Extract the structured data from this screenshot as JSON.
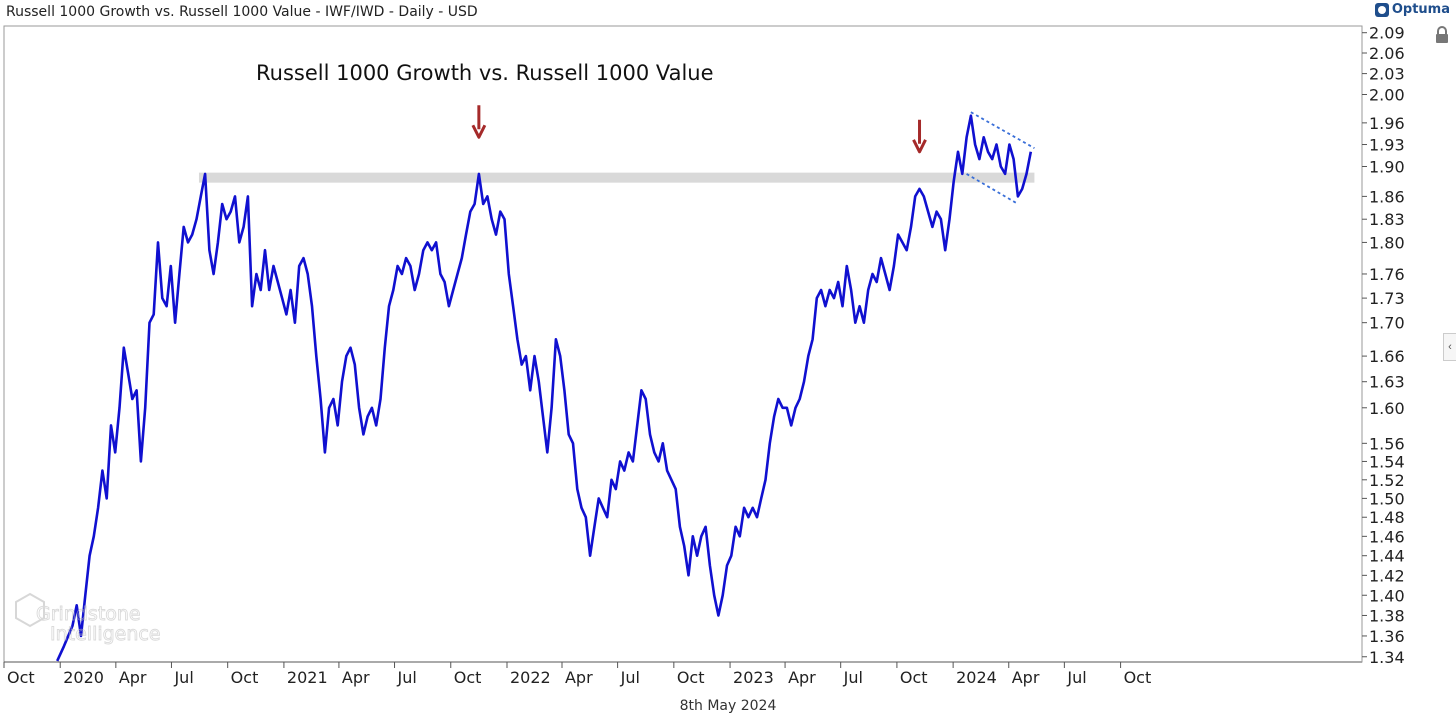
{
  "header": {
    "title": "Russell 1000 Growth vs. Russell 1000 Value - IWF/IWD - Daily - USD"
  },
  "brand": {
    "name": "Optuma"
  },
  "icons": {
    "lock": "lock-icon",
    "collapse": "chevron-left-icon"
  },
  "footer": {
    "date": "8th May 2024"
  },
  "watermark": {
    "line1": "Grindstone",
    "line2": "Intelligence"
  },
  "colors": {
    "series": "#1010d0",
    "resistance": "#d9d9d9",
    "arrow": "#a52a2a",
    "channel": "#3a6fd8"
  },
  "chart_data": {
    "type": "line",
    "title": "Russell 1000 Growth vs. Russell 1000 Value",
    "xlabel": "",
    "ylabel": "",
    "y_scale": "log",
    "ylim": [
      1.335,
      2.1
    ],
    "xlim": [
      "2019-10-01",
      "2025-10-31"
    ],
    "x_ticks": [
      {
        "date": "2019-10-01",
        "label": "Oct"
      },
      {
        "date": "2020-01-01",
        "label": "2020"
      },
      {
        "date": "2020-04-01",
        "label": "Apr"
      },
      {
        "date": "2020-07-01",
        "label": "Jul"
      },
      {
        "date": "2020-10-01",
        "label": "Oct"
      },
      {
        "date": "2021-01-01",
        "label": "2021"
      },
      {
        "date": "2021-04-01",
        "label": "Apr"
      },
      {
        "date": "2021-07-01",
        "label": "Jul"
      },
      {
        "date": "2021-10-01",
        "label": "Oct"
      },
      {
        "date": "2022-01-01",
        "label": "2022"
      },
      {
        "date": "2022-04-01",
        "label": "Apr"
      },
      {
        "date": "2022-07-01",
        "label": "Jul"
      },
      {
        "date": "2022-10-01",
        "label": "Oct"
      },
      {
        "date": "2023-01-01",
        "label": "2023"
      },
      {
        "date": "2023-04-01",
        "label": "Apr"
      },
      {
        "date": "2023-07-01",
        "label": "Jul"
      },
      {
        "date": "2023-10-01",
        "label": "Oct"
      },
      {
        "date": "2024-01-01",
        "label": "2024"
      },
      {
        "date": "2024-04-01",
        "label": "Apr"
      },
      {
        "date": "2024-07-01",
        "label": "Jul"
      },
      {
        "date": "2024-10-01",
        "label": "Oct"
      }
    ],
    "y_ticks": [
      1.34,
      1.36,
      1.38,
      1.4,
      1.42,
      1.44,
      1.46,
      1.48,
      1.5,
      1.52,
      1.54,
      1.56,
      1.6,
      1.63,
      1.66,
      1.7,
      1.73,
      1.76,
      1.8,
      1.83,
      1.86,
      1.9,
      1.93,
      1.96,
      2.0,
      2.03,
      2.06,
      2.09
    ],
    "y_tick_labels": [
      "1.34",
      "1.36",
      "1.38",
      "1.40",
      "1.42",
      "1.44",
      "1.46",
      "1.48",
      "1.50",
      "1.52",
      "1.54",
      "1.56",
      "1.60",
      "1.63",
      "1.66",
      "1.70",
      "1.73",
      "1.76",
      "1.80",
      "1.83",
      "1.86",
      "1.90",
      "1.93",
      "1.96",
      "2.00",
      "2.03",
      "2.06",
      "2.09"
    ],
    "series": [
      {
        "values": [
          [
            "2019-12-27",
            1.336
          ],
          [
            "2020-01-07",
            1.35
          ],
          [
            "2020-01-14",
            1.36
          ],
          [
            "2020-01-21",
            1.37
          ],
          [
            "2020-01-28",
            1.39
          ],
          [
            "2020-02-04",
            1.36
          ],
          [
            "2020-02-11",
            1.4
          ],
          [
            "2020-02-18",
            1.44
          ],
          [
            "2020-02-25",
            1.46
          ],
          [
            "2020-03-03",
            1.49
          ],
          [
            "2020-03-10",
            1.53
          ],
          [
            "2020-03-17",
            1.5
          ],
          [
            "2020-03-24",
            1.58
          ],
          [
            "2020-03-31",
            1.55
          ],
          [
            "2020-04-07",
            1.6
          ],
          [
            "2020-04-14",
            1.67
          ],
          [
            "2020-04-21",
            1.64
          ],
          [
            "2020-04-28",
            1.61
          ],
          [
            "2020-05-05",
            1.62
          ],
          [
            "2020-05-12",
            1.54
          ],
          [
            "2020-05-19",
            1.6
          ],
          [
            "2020-05-26",
            1.7
          ],
          [
            "2020-06-02",
            1.71
          ],
          [
            "2020-06-09",
            1.8
          ],
          [
            "2020-06-16",
            1.73
          ],
          [
            "2020-06-23",
            1.72
          ],
          [
            "2020-06-30",
            1.77
          ],
          [
            "2020-07-07",
            1.7
          ],
          [
            "2020-07-14",
            1.76
          ],
          [
            "2020-07-21",
            1.82
          ],
          [
            "2020-07-28",
            1.8
          ],
          [
            "2020-08-04",
            1.81
          ],
          [
            "2020-08-11",
            1.83
          ],
          [
            "2020-08-18",
            1.86
          ],
          [
            "2020-08-25",
            1.89
          ],
          [
            "2020-09-01",
            1.79
          ],
          [
            "2020-09-08",
            1.76
          ],
          [
            "2020-09-15",
            1.8
          ],
          [
            "2020-09-22",
            1.85
          ],
          [
            "2020-09-29",
            1.83
          ],
          [
            "2020-10-06",
            1.84
          ],
          [
            "2020-10-13",
            1.86
          ],
          [
            "2020-10-20",
            1.8
          ],
          [
            "2020-10-27",
            1.82
          ],
          [
            "2020-11-03",
            1.86
          ],
          [
            "2020-11-10",
            1.72
          ],
          [
            "2020-11-17",
            1.76
          ],
          [
            "2020-11-24",
            1.74
          ],
          [
            "2020-12-01",
            1.79
          ],
          [
            "2020-12-08",
            1.74
          ],
          [
            "2020-12-15",
            1.77
          ],
          [
            "2020-12-22",
            1.75
          ],
          [
            "2020-12-29",
            1.73
          ],
          [
            "2021-01-05",
            1.71
          ],
          [
            "2021-01-12",
            1.74
          ],
          [
            "2021-01-19",
            1.7
          ],
          [
            "2021-01-26",
            1.77
          ],
          [
            "2021-02-02",
            1.78
          ],
          [
            "2021-02-09",
            1.76
          ],
          [
            "2021-02-16",
            1.72
          ],
          [
            "2021-02-23",
            1.66
          ],
          [
            "2021-03-02",
            1.61
          ],
          [
            "2021-03-09",
            1.55
          ],
          [
            "2021-03-16",
            1.6
          ],
          [
            "2021-03-23",
            1.61
          ],
          [
            "2021-03-30",
            1.58
          ],
          [
            "2021-04-06",
            1.63
          ],
          [
            "2021-04-13",
            1.66
          ],
          [
            "2021-04-20",
            1.67
          ],
          [
            "2021-04-27",
            1.65
          ],
          [
            "2021-05-04",
            1.6
          ],
          [
            "2021-05-11",
            1.57
          ],
          [
            "2021-05-18",
            1.59
          ],
          [
            "2021-05-25",
            1.6
          ],
          [
            "2021-06-01",
            1.58
          ],
          [
            "2021-06-08",
            1.61
          ],
          [
            "2021-06-15",
            1.67
          ],
          [
            "2021-06-22",
            1.72
          ],
          [
            "2021-06-29",
            1.74
          ],
          [
            "2021-07-06",
            1.77
          ],
          [
            "2021-07-13",
            1.76
          ],
          [
            "2021-07-20",
            1.78
          ],
          [
            "2021-07-27",
            1.77
          ],
          [
            "2021-08-03",
            1.74
          ],
          [
            "2021-08-10",
            1.76
          ],
          [
            "2021-08-17",
            1.79
          ],
          [
            "2021-08-24",
            1.8
          ],
          [
            "2021-08-31",
            1.79
          ],
          [
            "2021-09-07",
            1.8
          ],
          [
            "2021-09-14",
            1.76
          ],
          [
            "2021-09-21",
            1.75
          ],
          [
            "2021-09-28",
            1.72
          ],
          [
            "2021-10-05",
            1.74
          ],
          [
            "2021-10-12",
            1.76
          ],
          [
            "2021-10-19",
            1.78
          ],
          [
            "2021-10-26",
            1.81
          ],
          [
            "2021-11-02",
            1.84
          ],
          [
            "2021-11-09",
            1.85
          ],
          [
            "2021-11-16",
            1.89
          ],
          [
            "2021-11-23",
            1.85
          ],
          [
            "2021-11-30",
            1.86
          ],
          [
            "2021-12-07",
            1.83
          ],
          [
            "2021-12-14",
            1.81
          ],
          [
            "2021-12-21",
            1.84
          ],
          [
            "2021-12-28",
            1.83
          ],
          [
            "2022-01-04",
            1.76
          ],
          [
            "2022-01-11",
            1.72
          ],
          [
            "2022-01-18",
            1.68
          ],
          [
            "2022-01-25",
            1.65
          ],
          [
            "2022-02-01",
            1.66
          ],
          [
            "2022-02-08",
            1.62
          ],
          [
            "2022-02-15",
            1.66
          ],
          [
            "2022-02-22",
            1.63
          ],
          [
            "2022-03-01",
            1.59
          ],
          [
            "2022-03-08",
            1.55
          ],
          [
            "2022-03-15",
            1.6
          ],
          [
            "2022-03-22",
            1.68
          ],
          [
            "2022-03-29",
            1.66
          ],
          [
            "2022-04-05",
            1.62
          ],
          [
            "2022-04-12",
            1.57
          ],
          [
            "2022-04-19",
            1.56
          ],
          [
            "2022-04-26",
            1.51
          ],
          [
            "2022-05-03",
            1.49
          ],
          [
            "2022-05-10",
            1.48
          ],
          [
            "2022-05-17",
            1.44
          ],
          [
            "2022-05-24",
            1.47
          ],
          [
            "2022-05-31",
            1.5
          ],
          [
            "2022-06-07",
            1.49
          ],
          [
            "2022-06-14",
            1.48
          ],
          [
            "2022-06-21",
            1.52
          ],
          [
            "2022-06-28",
            1.51
          ],
          [
            "2022-07-05",
            1.54
          ],
          [
            "2022-07-12",
            1.53
          ],
          [
            "2022-07-19",
            1.55
          ],
          [
            "2022-07-26",
            1.54
          ],
          [
            "2022-08-02",
            1.58
          ],
          [
            "2022-08-09",
            1.62
          ],
          [
            "2022-08-16",
            1.61
          ],
          [
            "2022-08-23",
            1.57
          ],
          [
            "2022-08-30",
            1.55
          ],
          [
            "2022-09-06",
            1.54
          ],
          [
            "2022-09-13",
            1.56
          ],
          [
            "2022-09-20",
            1.53
          ],
          [
            "2022-09-27",
            1.52
          ],
          [
            "2022-10-04",
            1.51
          ],
          [
            "2022-10-11",
            1.47
          ],
          [
            "2022-10-18",
            1.45
          ],
          [
            "2022-10-25",
            1.42
          ],
          [
            "2022-11-01",
            1.46
          ],
          [
            "2022-11-08",
            1.44
          ],
          [
            "2022-11-15",
            1.46
          ],
          [
            "2022-11-22",
            1.47
          ],
          [
            "2022-11-29",
            1.43
          ],
          [
            "2022-12-06",
            1.4
          ],
          [
            "2022-12-13",
            1.38
          ],
          [
            "2022-12-20",
            1.4
          ],
          [
            "2022-12-27",
            1.43
          ],
          [
            "2023-01-03",
            1.44
          ],
          [
            "2023-01-10",
            1.47
          ],
          [
            "2023-01-17",
            1.46
          ],
          [
            "2023-01-24",
            1.49
          ],
          [
            "2023-01-31",
            1.48
          ],
          [
            "2023-02-07",
            1.49
          ],
          [
            "2023-02-14",
            1.48
          ],
          [
            "2023-02-21",
            1.5
          ],
          [
            "2023-02-28",
            1.52
          ],
          [
            "2023-03-07",
            1.56
          ],
          [
            "2023-03-14",
            1.59
          ],
          [
            "2023-03-21",
            1.61
          ],
          [
            "2023-03-28",
            1.6
          ],
          [
            "2023-04-04",
            1.6
          ],
          [
            "2023-04-11",
            1.58
          ],
          [
            "2023-04-18",
            1.6
          ],
          [
            "2023-04-25",
            1.61
          ],
          [
            "2023-05-02",
            1.63
          ],
          [
            "2023-05-09",
            1.66
          ],
          [
            "2023-05-16",
            1.68
          ],
          [
            "2023-05-23",
            1.73
          ],
          [
            "2023-05-30",
            1.74
          ],
          [
            "2023-06-06",
            1.72
          ],
          [
            "2023-06-13",
            1.74
          ],
          [
            "2023-06-20",
            1.73
          ],
          [
            "2023-06-27",
            1.75
          ],
          [
            "2023-07-04",
            1.72
          ],
          [
            "2023-07-11",
            1.77
          ],
          [
            "2023-07-18",
            1.74
          ],
          [
            "2023-07-25",
            1.7
          ],
          [
            "2023-08-01",
            1.72
          ],
          [
            "2023-08-08",
            1.7
          ],
          [
            "2023-08-15",
            1.74
          ],
          [
            "2023-08-22",
            1.76
          ],
          [
            "2023-08-29",
            1.75
          ],
          [
            "2023-09-05",
            1.78
          ],
          [
            "2023-09-12",
            1.76
          ],
          [
            "2023-09-19",
            1.74
          ],
          [
            "2023-09-26",
            1.77
          ],
          [
            "2023-10-03",
            1.81
          ],
          [
            "2023-10-10",
            1.8
          ],
          [
            "2023-10-17",
            1.79
          ],
          [
            "2023-10-24",
            1.82
          ],
          [
            "2023-10-31",
            1.86
          ],
          [
            "2023-11-07",
            1.87
          ],
          [
            "2023-11-14",
            1.86
          ],
          [
            "2023-11-21",
            1.84
          ],
          [
            "2023-11-28",
            1.82
          ],
          [
            "2023-12-05",
            1.84
          ],
          [
            "2023-12-12",
            1.83
          ],
          [
            "2023-12-19",
            1.79
          ],
          [
            "2023-12-26",
            1.83
          ],
          [
            "2024-01-02",
            1.88
          ],
          [
            "2024-01-09",
            1.92
          ],
          [
            "2024-01-16",
            1.89
          ],
          [
            "2024-01-23",
            1.94
          ],
          [
            "2024-01-30",
            1.97
          ],
          [
            "2024-02-06",
            1.93
          ],
          [
            "2024-02-13",
            1.91
          ],
          [
            "2024-02-20",
            1.94
          ],
          [
            "2024-02-27",
            1.92
          ],
          [
            "2024-03-05",
            1.91
          ],
          [
            "2024-03-12",
            1.93
          ],
          [
            "2024-03-19",
            1.9
          ],
          [
            "2024-03-26",
            1.89
          ],
          [
            "2024-04-02",
            1.93
          ],
          [
            "2024-04-09",
            1.91
          ],
          [
            "2024-04-16",
            1.86
          ],
          [
            "2024-04-23",
            1.87
          ],
          [
            "2024-04-30",
            1.89
          ],
          [
            "2024-05-07",
            1.92
          ]
        ]
      }
    ],
    "annotations": {
      "resistance_band": {
        "y": 1.885,
        "from": "2020-08-15",
        "to": "2024-05-13"
      },
      "arrows": [
        {
          "date": "2021-11-16",
          "y": 1.94
        },
        {
          "date": "2023-11-07",
          "y": 1.92
        }
      ],
      "channel_upper": [
        [
          "2024-01-30",
          1.975
        ],
        [
          "2024-05-13",
          1.925
        ]
      ],
      "channel_lower": [
        [
          "2024-01-23",
          1.89
        ],
        [
          "2024-04-16",
          1.85
        ]
      ]
    }
  }
}
